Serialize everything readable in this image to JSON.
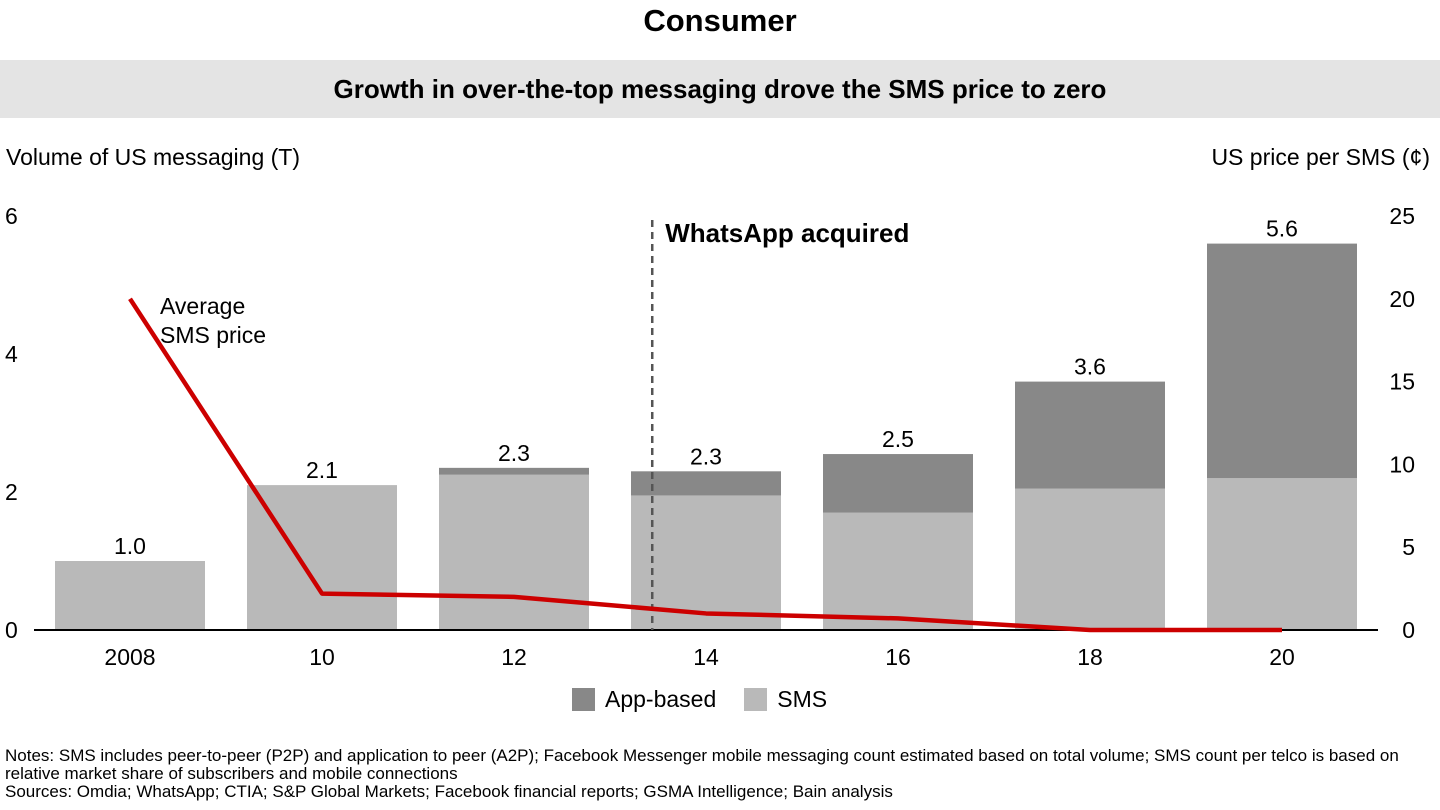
{
  "header": {
    "title": "Consumer",
    "subtitle": "Growth in over-the-top messaging drove the SMS price to zero"
  },
  "colors": {
    "sms": "#b9b9b9",
    "app_based": "#888888",
    "price_line": "#cc0000",
    "divider": "#555555",
    "band": "#e4e4e4"
  },
  "chart_data": {
    "type": "bar",
    "stacked": true,
    "xlabel": "",
    "ylabel": "Volume of US messaging (T)",
    "y2label": "US price per SMS (¢)",
    "categories": [
      "2008",
      "10",
      "12",
      "14",
      "16",
      "18",
      "20"
    ],
    "series": [
      {
        "name": "SMS",
        "values": [
          1.0,
          2.1,
          2.25,
          1.95,
          1.7,
          2.05,
          2.2
        ]
      },
      {
        "name": "App-based",
        "values": [
          0.0,
          0.0,
          0.1,
          0.35,
          0.85,
          1.55,
          3.4
        ]
      }
    ],
    "totals_labels": [
      "1.0",
      "2.1",
      "2.3",
      "2.3",
      "2.5",
      "3.6",
      "5.6"
    ],
    "ylim": [
      0,
      6
    ],
    "yticks": [
      "0",
      "2",
      "4",
      "6"
    ],
    "y2lim": [
      0,
      25
    ],
    "y2ticks": [
      "0",
      "5",
      "10",
      "15",
      "20",
      "25"
    ],
    "line_series": {
      "name": "Average SMS price",
      "axis": "right",
      "label_lines": [
        "Average",
        "SMS price"
      ],
      "values": [
        20.0,
        2.2,
        2.0,
        1.0,
        0.7,
        0.0,
        0.0
      ]
    },
    "annotation": {
      "label": "WhatsApp acquired",
      "position_between": [
        "12",
        "14"
      ],
      "at_category_fraction": 0.72
    },
    "legend_position": "bottom"
  },
  "legend": {
    "items": [
      {
        "label": "App-based",
        "color": "#888888"
      },
      {
        "label": "SMS",
        "color": "#b9b9b9"
      }
    ]
  },
  "notes": {
    "line1": "Notes: SMS includes peer-to-peer (P2P) and application to peer (A2P); Facebook Messenger mobile messaging count estimated based on total volume; SMS count per telco is based on relative market share of subscribers and mobile connections",
    "line2": "Sources: Omdia; WhatsApp; CTIA; S&P Global Markets; Facebook financial reports; GSMA Intelligence; Bain analysis"
  }
}
